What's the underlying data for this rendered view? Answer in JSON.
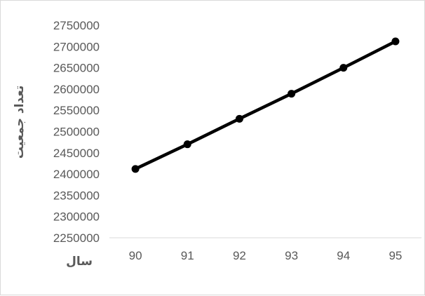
{
  "chart_data": {
    "type": "line",
    "title": "",
    "xlabel": "سال",
    "ylabel": "تعداد جمعیت",
    "categories": [
      "90",
      "91",
      "92",
      "93",
      "94",
      "95"
    ],
    "series": [
      {
        "values": [
          2412000,
          2470000,
          2530000,
          2589000,
          2650000,
          2712000
        ]
      }
    ],
    "ylim": [
      2250000,
      2750000
    ],
    "yticks": [
      "2250000",
      "2300000",
      "2350000",
      "2400000",
      "2450000",
      "2500000",
      "2550000",
      "2600000",
      "2650000",
      "2700000",
      "2750000"
    ],
    "grid": false,
    "legend": "none",
    "colors": {
      "line": "#000000",
      "marker": "#000000",
      "axis": "#d9d9d9",
      "text": "#595959"
    }
  }
}
